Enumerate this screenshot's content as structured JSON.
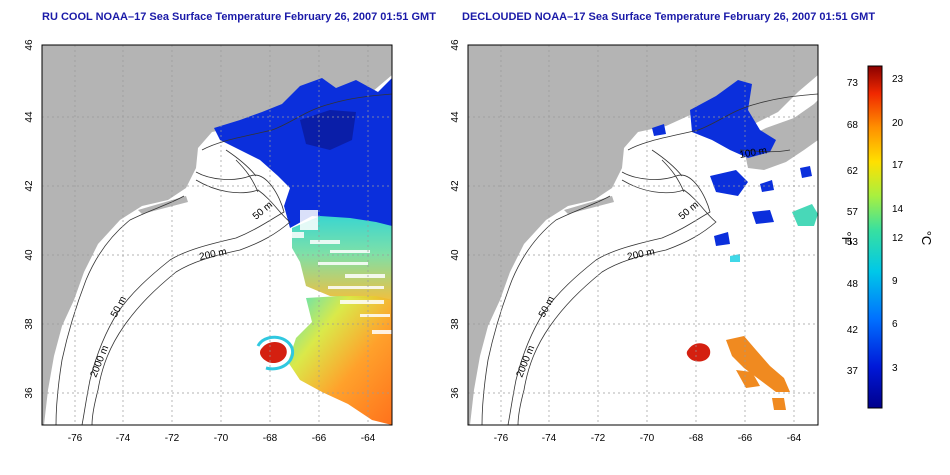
{
  "panels": [
    {
      "title": "RU COOL NOAA–17 Sea Surface Temperature February 26, 2007 01:51 GMT",
      "contour_labels": [
        "50 m",
        "200 m",
        "50 m",
        "2000 m"
      ]
    },
    {
      "title": "DECLOUDED NOAA–17 Sea Surface Temperature February 26, 2007 01:51 GMT",
      "contour_labels": [
        "100 m",
        "50 m",
        "200 m",
        "50 m",
        "2000 m"
      ]
    }
  ],
  "axes": {
    "lon_ticks": [
      "-76",
      "-74",
      "-72",
      "-70",
      "-68",
      "-66",
      "-64"
    ],
    "lat_ticks": [
      "46",
      "44",
      "42",
      "40",
      "38",
      "36"
    ]
  },
  "colorbar": {
    "fahrenheit_ticks": [
      "73",
      "68",
      "62",
      "57",
      "53",
      "48",
      "42",
      "37"
    ],
    "celsius_ticks": [
      "23",
      "20",
      "17",
      "14",
      "12",
      "9",
      "6",
      "3"
    ],
    "fahrenheit_unit": "°F",
    "celsius_unit": "°C"
  },
  "colors": {
    "title": "#1a1aa8",
    "land": "#b4b4b4",
    "ocean_missing": "#ffffff",
    "grid": "#9a9a9a"
  }
}
